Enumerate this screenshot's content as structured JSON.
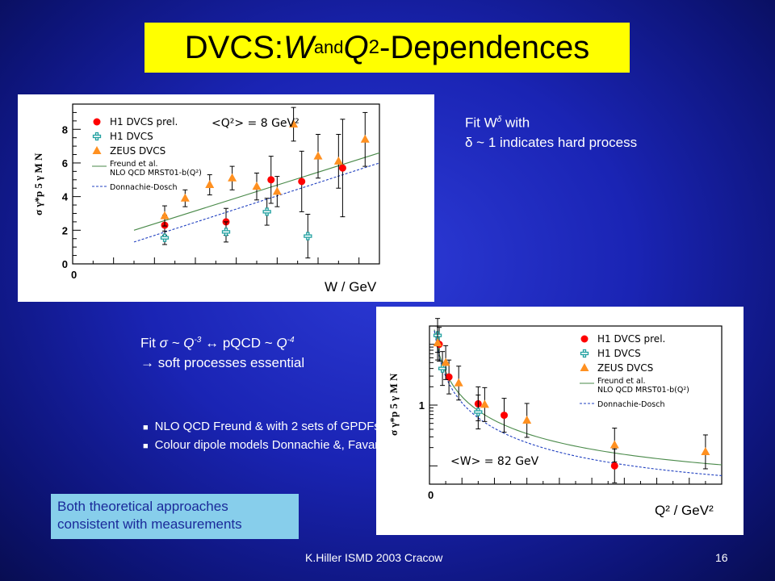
{
  "slide": {
    "title_part1": "DVCS: ",
    "title_w": "W",
    "title_and": " and ",
    "title_q": "Q",
    "title_sup": "2",
    "title_part2": "-Dependences",
    "fitw_line1_a": "Fit W",
    "fitw_line1_sup": "δ",
    "fitw_line1_b": " with",
    "fitw_line2": "δ  ~ 1 indicates hard process",
    "fitq_line1_a": "Fit  ",
    "fitq_line1_sigma": "σ ~ Q",
    "fitq_line1_sup1": "-3",
    "fitq_line1_mid": " ↔  pQCD  ~ ",
    "fitq_line1_q": "Q",
    "fitq_line1_sup2": "-4",
    "fitq_line2": "  soft processes essential",
    "fitq_arrow": "→",
    "bullet1": "NLO QCD    Freund & with 2 sets of GPDFs",
    "bullet2": "Colour dipole models  Donnachie &, Favart &",
    "conclusion": "Both theoretical approaches consistent with measurements",
    "footer_left": "K.Hiller ISMD 2003   Cracow",
    "footer_right": "16"
  },
  "colors": {
    "title_bg": "#ffff00",
    "h1_prel": "#ff0000",
    "h1": "#20a0a0",
    "zeus": "#ff9020",
    "freund": "#4a8a4a",
    "donnachie": "#2040c0"
  },
  "chart_data": [
    {
      "type": "scatter",
      "title": "",
      "ylabel": "σ γ*p 5 γ  M N",
      "xlabel": "W / GeV",
      "ylim": [
        0,
        9.5
      ],
      "y_ticks": [
        "0",
        "2",
        "4",
        "6",
        "8"
      ],
      "x_ticks": [
        "0"
      ],
      "xlim": [
        0,
        150
      ],
      "annotation": "<Q²> = 8 GeV²",
      "legend_position": "top-left",
      "series": [
        {
          "name": "H1 DVCS prel.",
          "marker": "circle",
          "points": [
            [
              45,
              2.3,
              0.6
            ],
            [
              75,
              2.5,
              0.8
            ],
            [
              97,
              5.0,
              1.4
            ],
            [
              112,
              4.9,
              1.8
            ],
            [
              132,
              5.7,
              2.9
            ]
          ]
        },
        {
          "name": "H1 DVCS",
          "marker": "cross",
          "points": [
            [
              45,
              1.55,
              0.4
            ],
            [
              75,
              1.9,
              0.6
            ],
            [
              95,
              3.1,
              0.8
            ],
            [
              115,
              1.65,
              1.3
            ]
          ]
        },
        {
          "name": "ZEUS DVCS",
          "marker": "triangle",
          "points": [
            [
              45,
              2.85,
              0.6
            ],
            [
              55,
              3.9,
              0.5
            ],
            [
              67,
              4.7,
              0.6
            ],
            [
              78,
              5.1,
              0.7
            ],
            [
              90,
              4.6,
              0.8
            ],
            [
              100,
              4.3,
              0.9
            ],
            [
              108,
              8.3,
              1.0
            ],
            [
              120,
              6.4,
              1.3
            ],
            [
              130,
              6.1,
              1.6
            ],
            [
              143,
              7.4,
              1.6
            ]
          ]
        },
        {
          "name": "Freund et al. NLO QCD MRST01-b(Q²)",
          "line": "solid",
          "x": [
            30,
            150
          ],
          "y": [
            2.0,
            6.6
          ]
        },
        {
          "name": "Donnachie-Dosch",
          "line": "dashed",
          "x": [
            30,
            150
          ],
          "y": [
            1.3,
            6.0
          ]
        }
      ]
    },
    {
      "type": "scatter",
      "title": "",
      "ylabel": "σ γ*p 5 γ  M N",
      "xlabel": "Q² / GeV²",
      "yscale": "log",
      "y_ticks": [
        "1"
      ],
      "x_ticks": [
        "0"
      ],
      "xlim": [
        0,
        90
      ],
      "annotation": "<W> = 82 GeV",
      "legend_position": "top-right",
      "series": [
        {
          "name": "H1 DVCS prel.",
          "marker": "circle",
          "points": [
            [
              3,
              10.0
            ],
            [
              6,
              2.9
            ],
            [
              15,
              1.05
            ],
            [
              23,
              0.68
            ],
            [
              57,
              0.1
            ]
          ]
        },
        {
          "name": "H1 DVCS",
          "marker": "cross",
          "points": [
            [
              2.5,
              14.0
            ],
            [
              4,
              4.0
            ],
            [
              15,
              0.77
            ]
          ]
        },
        {
          "name": "ZEUS DVCS",
          "marker": "triangle",
          "points": [
            [
              2.5,
              10.5
            ],
            [
              5,
              5.0
            ],
            [
              9,
              2.3
            ],
            [
              17,
              1.02
            ],
            [
              30,
              0.56
            ],
            [
              57,
              0.22
            ],
            [
              85,
              0.17
            ]
          ]
        },
        {
          "name": "Freund et al. NLO QCD MRST01-b(Q²)",
          "line": "solid"
        },
        {
          "name": "Donnachie-Dosch",
          "line": "dashed"
        }
      ]
    }
  ]
}
